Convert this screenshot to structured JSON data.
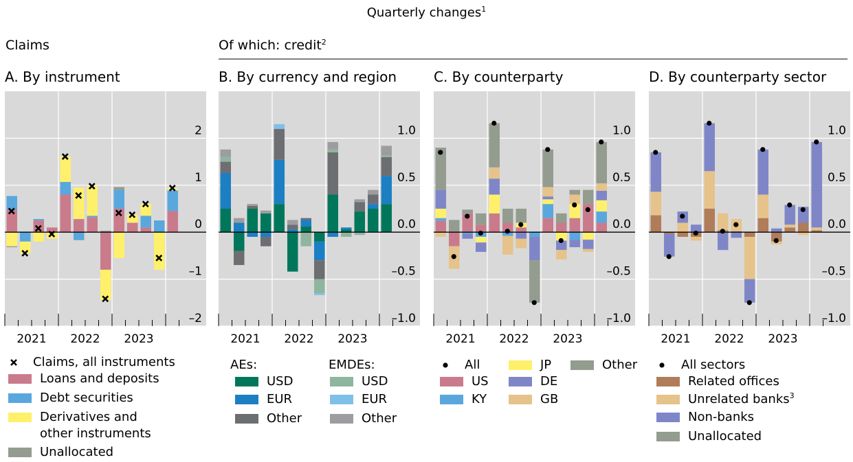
{
  "title": "Quarterly changes",
  "title_sup": "1",
  "left_heading": "Claims",
  "right_heading": "Of which: credit",
  "right_heading_sup": "2",
  "chart_data": [
    {
      "type": "bar",
      "stacked": true,
      "title": "A. By instrument",
      "categories": [
        "2021",
        null,
        null,
        null,
        "2022",
        null,
        null,
        null,
        "2023",
        null,
        null,
        null,
        null
      ],
      "ylim": [
        -2,
        3
      ],
      "yticks": [
        {
          "value": -2,
          "label": "–2"
        },
        {
          "value": -1,
          "label": "–1"
        },
        0,
        1,
        2
      ],
      "total": {
        "name": "Claims, all instruments",
        "marker": "cross",
        "values": [
          0.45,
          -0.45,
          0.08,
          -0.04,
          1.61,
          0.78,
          0.98,
          -1.42,
          0.41,
          0.37,
          0.6,
          -0.55,
          0.94
        ]
      },
      "series": [
        {
          "name": "Loans and deposits",
          "color": "#c97b8c",
          "values": [
            0.47,
            0,
            0.25,
            0.1,
            0.8,
            0.28,
            0.32,
            -0.8,
            0.5,
            0.2,
            0.1,
            0,
            0.45
          ]
        },
        {
          "name": "Debt securities",
          "color": "#5aa7dd",
          "values": [
            0.3,
            -0.2,
            0.03,
            0,
            0.27,
            -0.17,
            0.03,
            0,
            0.4,
            0,
            0.25,
            0.25,
            0.44
          ]
        },
        {
          "name": "Derivatives and\nother instruments",
          "color": "#fff06b",
          "values": [
            -0.3,
            -0.25,
            -0.2,
            -0.14,
            0.54,
            0.67,
            0.63,
            -0.65,
            -0.55,
            0.17,
            0.25,
            -0.8,
            0.05
          ]
        },
        {
          "name": "Unallocated",
          "color": "#939c8f",
          "values": [
            -0.02,
            0,
            0,
            0,
            0,
            0,
            0,
            0.03,
            0.06,
            0,
            0,
            0,
            0
          ]
        }
      ]
    },
    {
      "type": "bar",
      "stacked": true,
      "title": "B. By currency and region",
      "categories": [
        "2021",
        null,
        null,
        null,
        "2022",
        null,
        null,
        null,
        "2023",
        null,
        null,
        null,
        null
      ],
      "ylim": [
        -1,
        1.5
      ],
      "yticks": [
        {
          "value": -1,
          "label": "–1.0"
        },
        {
          "value": -0.5,
          "label": "–0.5"
        },
        {
          "value": 0,
          "label": "0.0"
        },
        0.5,
        {
          "value": 1,
          "label": "1.0"
        }
      ],
      "series_groups": [
        {
          "name": "AEs:",
          "series": [
            {
              "name": "USD",
              "color": "#00775b",
              "values": [
                0.25,
                -0.2,
                0.25,
                0.2,
                0.3,
                -0.42,
                0.06,
                -0.1,
                0.4,
                0.03,
                0.22,
                0.25,
                0.3
              ]
            },
            {
              "name": "EUR",
              "color": "#1c7fc4",
              "values": [
                0.38,
                0.1,
                -0.05,
                -0.05,
                0.47,
                0.03,
                0.07,
                -0.2,
                -0.05,
                0.02,
                0,
                0.05,
                0.3
              ]
            },
            {
              "name": "Other",
              "color": "#6d6e71",
              "values": [
                0.12,
                -0.15,
                0.03,
                -0.1,
                0.33,
                0.05,
                0.02,
                -0.2,
                0.45,
                0,
                0.1,
                0.1,
                0.2
              ]
            }
          ]
        },
        {
          "name": "EMDEs:",
          "series": [
            {
              "name": "USD",
              "color": "#8fb59f",
              "values": [
                0.05,
                0,
                0,
                0,
                0,
                0,
                -0.15,
                -0.15,
                0.03,
                -0.05,
                -0.03,
                0,
                0.02
              ]
            },
            {
              "name": "EUR",
              "color": "#7fc0e9",
              "values": [
                0,
                0,
                0,
                0,
                0.05,
                0,
                0,
                -0.02,
                0,
                0,
                0,
                0,
                0
              ]
            },
            {
              "name": "Other",
              "color": "#9d9d9f",
              "values": [
                0.08,
                0.05,
                0.02,
                0.03,
                0,
                0.05,
                0,
                0,
                0.08,
                0,
                0.03,
                0.05,
                0.1
              ]
            }
          ]
        }
      ]
    },
    {
      "type": "bar",
      "stacked": true,
      "title": "C. By counterparty",
      "categories": [
        "2021",
        null,
        null,
        null,
        "2022",
        null,
        null,
        null,
        "2023",
        null,
        null,
        null,
        null
      ],
      "ylim": [
        -1,
        1.5
      ],
      "yticks": [
        {
          "value": -1,
          "label": "–1.0"
        },
        {
          "value": -0.5,
          "label": "–0.5"
        },
        {
          "value": 0,
          "label": "0.0"
        },
        0.5,
        {
          "value": 1,
          "label": "1.0"
        }
      ],
      "total": {
        "name": "All",
        "marker": "dot",
        "values": [
          0.85,
          -0.26,
          0.17,
          -0.01,
          1.16,
          0.01,
          0.08,
          -0.75,
          0.88,
          -0.09,
          0.29,
          0.24,
          0.96
        ]
      },
      "series": [
        {
          "name": "US",
          "color": "#c97b8c",
          "values": [
            0.12,
            -0.15,
            0.2,
            0.08,
            0.2,
            0.1,
            0.05,
            0,
            0.15,
            0.1,
            0.15,
            0.3,
            0.1
          ]
        },
        {
          "name": "KY",
          "color": "#5aa7dd",
          "values": [
            0.03,
            0,
            -0.02,
            -0.05,
            0,
            -0.04,
            0,
            -0.05,
            0.15,
            0,
            -0.08,
            0,
            0.12
          ]
        },
        {
          "name": "JP",
          "color": "#fff06b",
          "values": [
            0.1,
            0,
            0,
            -0.06,
            0.2,
            0,
            0.05,
            0,
            0.05,
            -0.09,
            0.15,
            -0.08,
            0.12
          ]
        },
        {
          "name": "DE",
          "color": "#7f86c8",
          "values": [
            0.2,
            0,
            -0.05,
            -0.1,
            0.17,
            0,
            -0.07,
            -0.25,
            0.03,
            -0.1,
            -0.08,
            -0.1,
            0.1
          ]
        },
        {
          "name": "GB",
          "color": "#e6c38a",
          "values": [
            -0.05,
            -0.24,
            0,
            0,
            0.12,
            -0.2,
            -0.1,
            0,
            0.1,
            -0.1,
            0.1,
            -0.03,
            0.08
          ]
        },
        {
          "name": "Other",
          "color": "#939c8f",
          "values": [
            0.45,
            0.13,
            0.04,
            0.12,
            0.47,
            0.15,
            0.15,
            -0.45,
            0.4,
            0.1,
            0.05,
            0.15,
            0.44
          ]
        }
      ]
    },
    {
      "type": "bar",
      "stacked": true,
      "title": "D. By counterparty sector",
      "categories": [
        "2021",
        null,
        null,
        null,
        "2022",
        null,
        null,
        null,
        "2023",
        null,
        null,
        null,
        null
      ],
      "ylim": [
        -1,
        1.5
      ],
      "yticks": [
        {
          "value": -1,
          "label": "–1.0"
        },
        {
          "value": -0.5,
          "label": "–0.5"
        },
        {
          "value": 0,
          "label": "0.0"
        },
        0.5,
        {
          "value": 1,
          "label": "1.0"
        }
      ],
      "total": {
        "name": "All sectors",
        "marker": "dot",
        "values": [
          0.85,
          -0.26,
          0.17,
          -0.01,
          1.16,
          0.01,
          0.08,
          -0.75,
          0.88,
          -0.09,
          0.29,
          0.24,
          0.96
        ]
      },
      "series": [
        {
          "name": "Related offices",
          "color": "#b07c5a",
          "values": [
            0.18,
            -0.02,
            -0.05,
            -0.05,
            0.25,
            0.02,
            0.01,
            -0.05,
            0.15,
            -0.1,
            0.05,
            0.1,
            0.02
          ]
        },
        {
          "name": "Unrelated banks",
          "name_sup": "3",
          "color": "#e6c38a",
          "values": [
            0.25,
            0,
            0.1,
            -0.04,
            0.4,
            0.18,
            0.13,
            -0.45,
            0.25,
            -0.03,
            0.03,
            -0.03,
            0.03
          ]
        },
        {
          "name": "Non-banks",
          "color": "#7f86c8",
          "values": [
            0.42,
            -0.24,
            0.12,
            0.08,
            0.51,
            -0.19,
            -0.06,
            -0.25,
            0.48,
            0.04,
            0.21,
            0.17,
            0.91
          ]
        },
        {
          "name": "Unallocated",
          "color": "#939c8f",
          "values": [
            0,
            0,
            0,
            0,
            0,
            0,
            0,
            0,
            0,
            0,
            0,
            0,
            0
          ]
        }
      ]
    }
  ]
}
